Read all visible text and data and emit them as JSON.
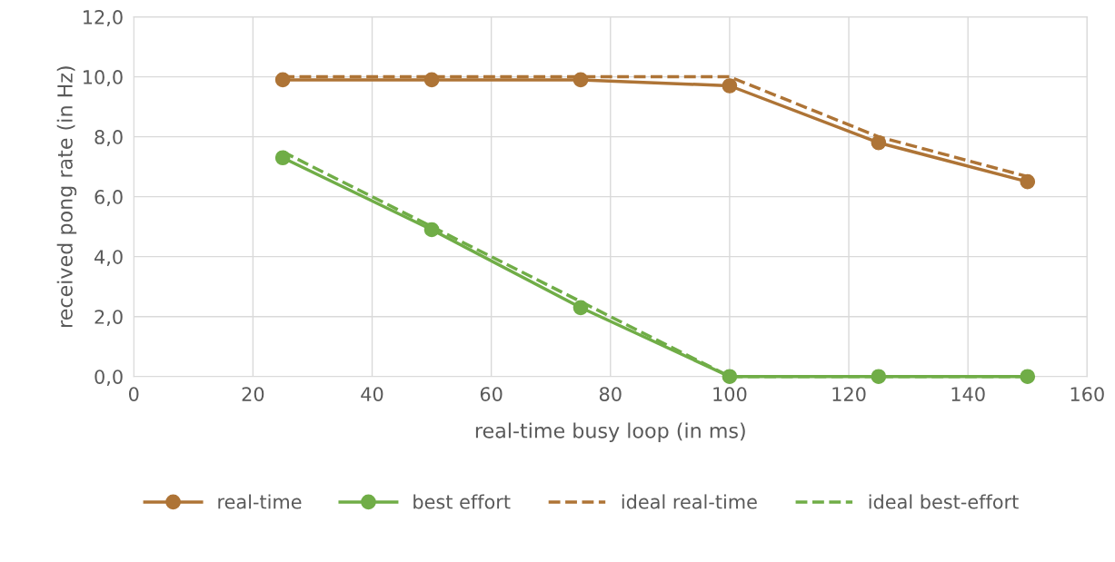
{
  "chart_data": {
    "type": "line",
    "xlabel": "real-time busy loop (in ms)",
    "ylabel": "received pong rate (in Hz)",
    "x": [
      25,
      50,
      75,
      100,
      125,
      150
    ],
    "series": [
      {
        "name": "real-time",
        "color": "#ae7436",
        "values": [
          9.9,
          9.9,
          9.9,
          9.7,
          7.8,
          6.5
        ],
        "marker": "circle",
        "line_style": "solid"
      },
      {
        "name": "best effort",
        "color": "#70ad47",
        "values": [
          7.3,
          4.9,
          2.3,
          0,
          0,
          0
        ],
        "marker": "circle",
        "line_style": "solid"
      },
      {
        "name": "ideal real-time",
        "color": "#ae7436",
        "values": [
          10,
          10,
          10,
          10,
          8.0,
          6.67
        ],
        "marker": "none",
        "line_style": "dashed"
      },
      {
        "name": "ideal best-effort",
        "color": "#70ad47",
        "values": [
          7.5,
          5.0,
          2.5,
          0,
          0,
          0
        ],
        "marker": "none",
        "line_style": "dashed"
      }
    ],
    "xlim": [
      0,
      160
    ],
    "xticks": [
      0,
      20,
      40,
      60,
      80,
      100,
      120,
      140,
      160
    ],
    "ylim": [
      0,
      12
    ],
    "yticks": [
      {
        "value": 0,
        "label": "0,0"
      },
      {
        "value": 2,
        "label": "2,0"
      },
      {
        "value": 4,
        "label": "4,0"
      },
      {
        "value": 6,
        "label": "6,0"
      },
      {
        "value": 8,
        "label": "8,0"
      },
      {
        "value": 10,
        "label": "10,0"
      },
      {
        "value": 12,
        "label": "12,0"
      }
    ],
    "grid": true,
    "legend": "bottom"
  }
}
